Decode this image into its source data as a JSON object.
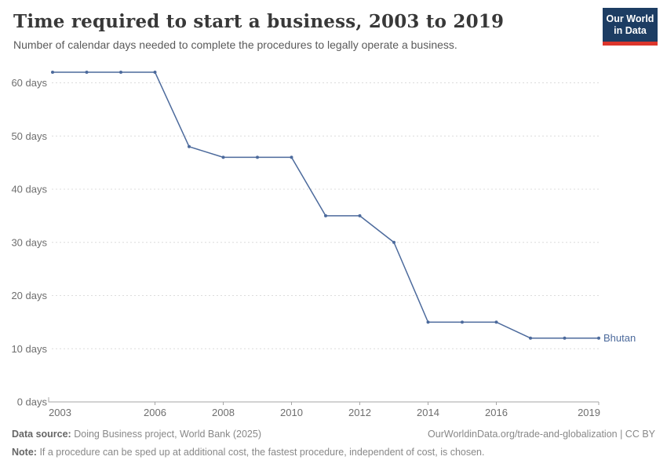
{
  "header": {
    "title": "Time required to start a business, 2003 to 2019",
    "subtitle": "Number of calendar days needed to complete the procedures to legally operate a business."
  },
  "logo": {
    "line1": "Our World",
    "line2": "in Data"
  },
  "chart_data": {
    "type": "line",
    "title": "Time required to start a business, 2003 to 2019",
    "x": [
      2003,
      2004,
      2005,
      2006,
      2007,
      2008,
      2009,
      2010,
      2011,
      2012,
      2013,
      2014,
      2015,
      2016,
      2017,
      2018,
      2019
    ],
    "series": [
      {
        "name": "Bhutan",
        "values": [
          62,
          62,
          62,
          62,
          48,
          46,
          46,
          46,
          35,
          35,
          30,
          15,
          15,
          15,
          12,
          12,
          12
        ],
        "color": "#4C6A9C"
      }
    ],
    "xticks": [
      2003,
      2006,
      2008,
      2010,
      2012,
      2014,
      2016,
      2019
    ],
    "yticks": [
      0,
      10,
      20,
      30,
      40,
      50,
      60
    ],
    "ytick_suffix": " days",
    "xlabel": "",
    "ylabel": "",
    "ylim": [
      0,
      63.8
    ],
    "xlim": [
      2003,
      2019
    ],
    "grid": "horizontal-dashed",
    "legend": "end-of-line-label"
  },
  "footer": {
    "data_source_label": "Data source:",
    "data_source": "Doing Business project, World Bank (2025)",
    "attribution": "OurWorldinData.org/trade-and-globalization | CC BY",
    "note_label": "Note:",
    "note": "If a procedure can be sped up at additional cost, the fastest procedure, independent of cost, is chosen."
  },
  "colors": {
    "line": "#4C6A9C",
    "grid": "#dcdcdc",
    "axis": "#a5a5a5",
    "tick_text": "#6e6e6e",
    "title": "#383838",
    "subtitle": "#5a5a5a",
    "footer_text": "#888888",
    "logo_bg": "#1d3d63",
    "logo_accent": "#dc352c"
  }
}
